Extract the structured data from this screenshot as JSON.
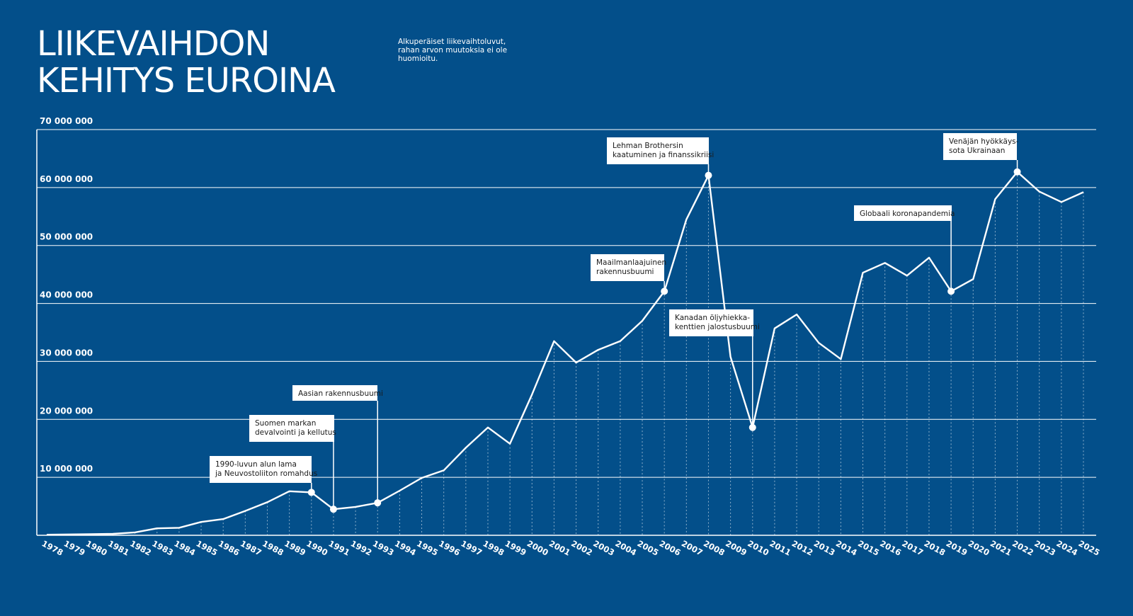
{
  "header": {
    "title_line1": "LIIKEVAIHDON",
    "title_line2": "KEHITYS EUROINA",
    "subtitle": "Alkuperäiset liikevaihtoluvut, rahan arvon muutoksia ei ole huomioitu."
  },
  "colors": {
    "background": "#034f8a",
    "line": "#ffffff",
    "annotation_box": "#ffffff",
    "annotation_text": "#1b1b1b"
  },
  "chart_data": {
    "type": "line",
    "title": "LIIKEVAIHDON KEHITYS EUROINA",
    "xlabel": "",
    "ylabel": "",
    "ylim": [
      0,
      70000000
    ],
    "grid": true,
    "y_ticks": [
      10000000,
      20000000,
      30000000,
      40000000,
      50000000,
      60000000,
      70000000
    ],
    "y_tick_labels": [
      "10 000 000",
      "20 000 000",
      "30 000 000",
      "40 000 000",
      "50 000 000",
      "60 000 000",
      "70 000 000"
    ],
    "x": [
      1978,
      1979,
      1980,
      1981,
      1982,
      1983,
      1984,
      1985,
      1986,
      1987,
      1988,
      1989,
      1990,
      1991,
      1992,
      1993,
      1994,
      1995,
      1996,
      1997,
      1998,
      1999,
      2000,
      2001,
      2002,
      2003,
      2004,
      2005,
      2006,
      2007,
      2008,
      2009,
      2010,
      2011,
      2012,
      2013,
      2014,
      2015,
      2016,
      2017,
      2018,
      2019,
      2020,
      2021,
      2022,
      2023,
      2024,
      2025
    ],
    "values": [
      100000,
      150000,
      200000,
      250000,
      500000,
      1200000,
      1300000,
      2300000,
      2800000,
      4200000,
      5700000,
      7600000,
      7400000,
      4500000,
      4900000,
      5600000,
      7700000,
      9900000,
      11200000,
      15100000,
      18600000,
      15800000,
      24300000,
      33500000,
      29800000,
      32000000,
      33500000,
      37000000,
      42100000,
      54500000,
      62100000,
      30800000,
      18600000,
      35700000,
      38100000,
      33200000,
      30400000,
      45300000,
      47000000,
      44800000,
      47900000,
      42100000,
      44200000,
      58000000,
      62700000,
      59300000,
      57500000,
      59200000
    ],
    "annotations": [
      {
        "year": 1990,
        "lines": [
          "1990-luvun alun lama",
          "ja Neuvostoliiton romahdus"
        ]
      },
      {
        "year": 1991,
        "lines": [
          "Suomen markan",
          "devalvointi ja kellutus"
        ]
      },
      {
        "year": 1993,
        "lines": [
          "Aasian rakennusbuumi"
        ]
      },
      {
        "year": 2006,
        "lines": [
          "Maailmanlaajuinen",
          "rakennusbuumi"
        ]
      },
      {
        "year": 2008,
        "lines": [
          "Lehman Brothersin",
          "kaatuminen ja finanssikriisi"
        ]
      },
      {
        "year": 2010,
        "lines": [
          "Kanadan öljyhiekka-",
          "kenttien jalostusbuumi"
        ]
      },
      {
        "year": 2019,
        "lines": [
          "Globaali koronapandemia"
        ]
      },
      {
        "year": 2022,
        "lines": [
          "Venäjän hyökkäys-",
          "sota Ukrainaan"
        ]
      }
    ]
  }
}
